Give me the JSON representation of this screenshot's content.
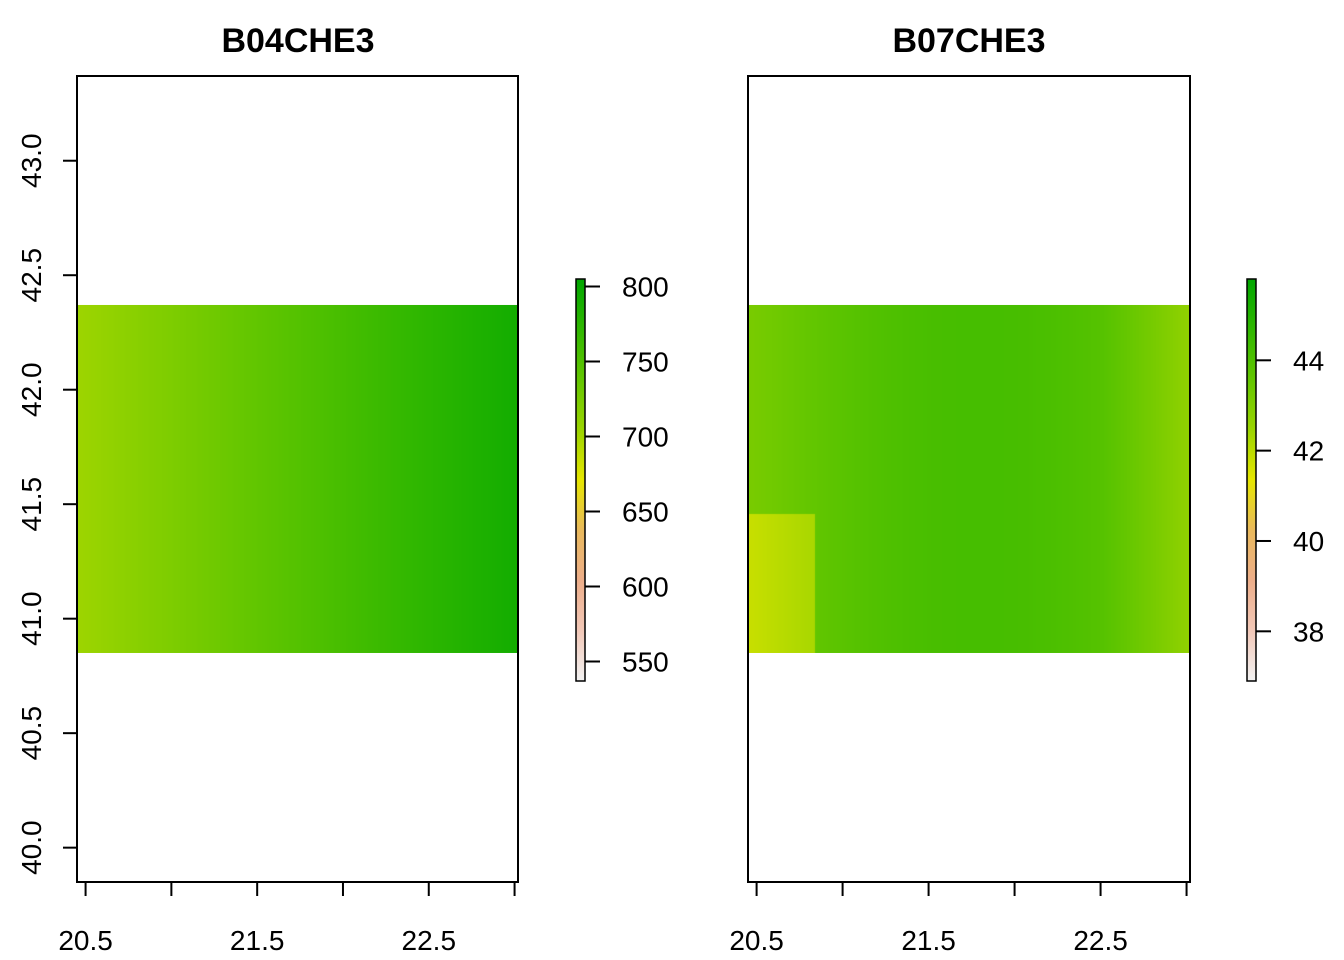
{
  "chart_data": [
    {
      "type": "heatmap",
      "title": "B04CHE3",
      "x_ticks": [
        20.5,
        21.0,
        21.5,
        22.0,
        22.5,
        23.0
      ],
      "x_tick_labels": [
        "20.5",
        "",
        "21.5",
        "",
        "22.5",
        ""
      ],
      "y_ticks": [
        40.0,
        40.5,
        41.0,
        41.5,
        42.0,
        42.5,
        43.0
      ],
      "y_tick_labels": [
        "40.0",
        "40.5",
        "41.0",
        "41.5",
        "42.0",
        "42.5",
        "43.0"
      ],
      "show_y_axis": true,
      "xlim": [
        20.45,
        23.02
      ],
      "ylim": [
        39.85,
        43.37
      ],
      "raster_extent": {
        "x": [
          20.45,
          23.02
        ],
        "y": [
          40.85,
          42.37
        ]
      },
      "legend": {
        "range": [
          537,
          805
        ],
        "ticks": [
          550,
          600,
          650,
          700,
          750,
          800
        ],
        "tick_labels": [
          "550",
          "600",
          "650",
          "700",
          "750",
          "800"
        ]
      },
      "east_high": true
    },
    {
      "type": "heatmap",
      "title": "B07CHE3",
      "x_ticks": [
        20.5,
        21.0,
        21.5,
        22.0,
        22.5,
        23.0
      ],
      "x_tick_labels": [
        "20.5",
        "",
        "21.5",
        "",
        "22.5",
        ""
      ],
      "y_ticks": [],
      "y_tick_labels": [],
      "show_y_axis": false,
      "xlim": [
        20.45,
        23.02
      ],
      "ylim": [
        39.85,
        43.37
      ],
      "raster_extent": {
        "x": [
          20.45,
          23.02
        ],
        "y": [
          40.85,
          42.37
        ]
      },
      "legend": {
        "range": [
          36.9,
          45.8
        ],
        "ticks": [
          38,
          40,
          42,
          44
        ],
        "tick_labels": [
          "38",
          "40",
          "42",
          "44"
        ]
      },
      "east_high": false
    }
  ],
  "colors": {
    "palette": [
      "#F2F2F2",
      "#F2C8B8",
      "#EDAE8A",
      "#E9B95C",
      "#E6E600",
      "#9BD400",
      "#63C600",
      "#2FB700",
      "#00A600"
    ]
  }
}
